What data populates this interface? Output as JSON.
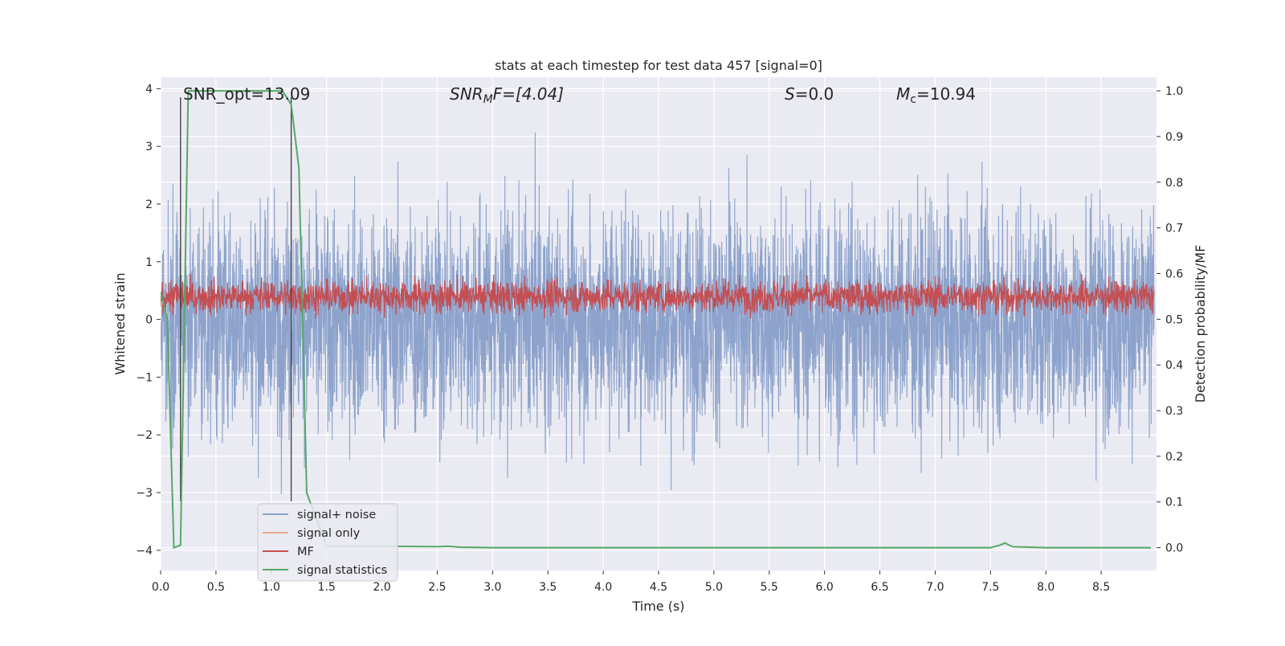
{
  "chart_data": {
    "type": "line",
    "title": "stats at each timestep for test data 457 [signal=0]",
    "xlabel": "Time (s)",
    "ylabel_left": "Whitened strain",
    "ylabel_right": "Detection probability/MF",
    "xlim": [
      0,
      9.0
    ],
    "ylim_left": [
      -4.35,
      4.2
    ],
    "ylim_right": [
      -0.05,
      1.03
    ],
    "xticks": [
      "0.0",
      "0.5",
      "1.0",
      "1.5",
      "2.0",
      "2.5",
      "3.0",
      "3.5",
      "4.0",
      "4.5",
      "5.0",
      "5.5",
      "6.0",
      "6.5",
      "7.0",
      "7.5",
      "8.0",
      "8.5"
    ],
    "yticks_left": [
      "−4",
      "−3",
      "−2",
      "−1",
      "0",
      "1",
      "2",
      "3",
      "4"
    ],
    "yticks_right": [
      "0.0",
      "0.1",
      "0.2",
      "0.3",
      "0.4",
      "0.5",
      "0.6",
      "0.7",
      "0.8",
      "0.9",
      "1.0"
    ],
    "grid": true,
    "legend_position": "lower-left",
    "annotations": {
      "snr_opt": "SNR_opt=13.09",
      "snr_mf_main": "SNR",
      "snr_mf_sub": "M",
      "snr_mf_rest": "F=[4.04]",
      "s_main": "S",
      "s_rest": "=0.0",
      "mc_main": "M",
      "mc_sub": "c",
      "mc_rest": "=10.94"
    },
    "vertical_lines_x": [
      0.18,
      1.18
    ],
    "series": [
      {
        "name": "signal+ noise",
        "color": "#8da3cc",
        "description_of_shape": "noise"
      },
      {
        "name": "signal only",
        "color": "#e8a88c"
      },
      {
        "name": "MF",
        "color": "#c44e52"
      },
      {
        "name": "signal statistics",
        "color": "#55a868",
        "x": [
          0.0,
          0.06,
          0.12,
          0.18,
          0.25,
          0.5,
          0.8,
          1.1,
          1.18,
          1.25,
          1.32,
          1.5,
          2.0,
          2.5,
          2.6,
          2.7,
          3.0,
          4.0,
          5.0,
          6.0,
          7.0,
          7.5,
          7.58,
          7.63,
          7.7,
          8.0,
          8.95
        ],
        "y": [
          0.56,
          0.5,
          0.0,
          0.005,
          1.0,
          1.0,
          1.0,
          1.0,
          0.97,
          0.83,
          0.12,
          0.003,
          0.003,
          0.002,
          0.003,
          0.001,
          0.0,
          0.0,
          0.0,
          0.0,
          0.0,
          0.0,
          0.005,
          0.01,
          0.002,
          0.0,
          0.0
        ]
      }
    ]
  }
}
